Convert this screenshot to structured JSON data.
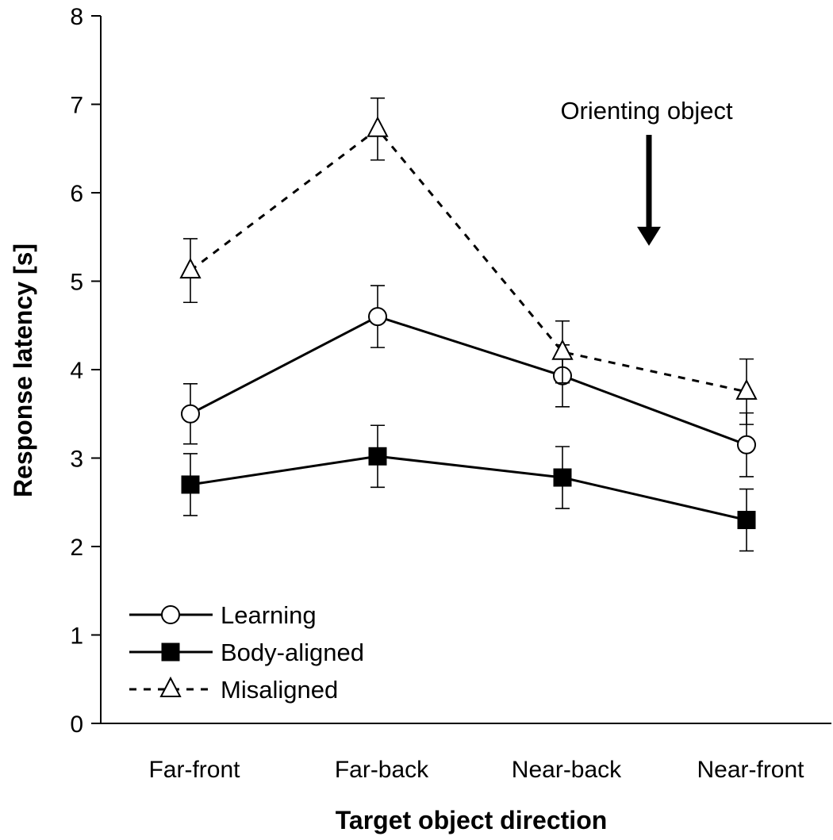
{
  "chart_data": {
    "type": "line",
    "categories": [
      "Far-front",
      "Far-back",
      "Near-back",
      "Near-front"
    ],
    "xlabel": "Target object direction",
    "ylabel": "Response latency [s]",
    "ylim": [
      0,
      8
    ],
    "yticks": [
      "0",
      "1",
      "2",
      "3",
      "4",
      "5",
      "6",
      "7",
      "8"
    ],
    "grid": false,
    "legend_position": "bottom-left",
    "series": [
      {
        "name": "Learning",
        "marker": "circle-open",
        "line": "solid",
        "values": [
          3.5,
          4.6,
          3.93,
          3.15
        ],
        "error": [
          0.34,
          0.35,
          0.35,
          0.36
        ]
      },
      {
        "name": "Body-aligned",
        "marker": "square-filled",
        "line": "solid",
        "values": [
          2.7,
          3.02,
          2.78,
          2.3
        ],
        "error": [
          0.35,
          0.35,
          0.35,
          0.35
        ]
      },
      {
        "name": "Misaligned",
        "marker": "triangle-open",
        "line": "dashed",
        "values": [
          5.12,
          6.72,
          4.2,
          3.75
        ],
        "error": [
          0.36,
          0.35,
          0.35,
          0.37
        ]
      }
    ],
    "annotation": {
      "text": "Orienting object",
      "points_to_value": 5.4,
      "icon": "down-arrow-icon"
    }
  }
}
